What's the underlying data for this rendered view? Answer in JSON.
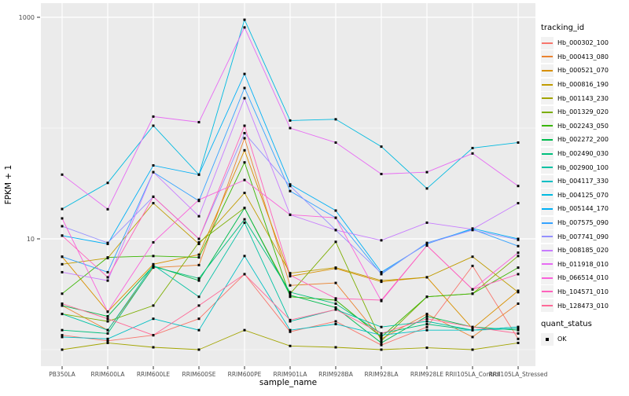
{
  "chart_data": {
    "type": "line",
    "title": "",
    "xlabel": "sample_name",
    "ylabel": "FPKM + 1",
    "y_scale": "log10",
    "y_tick_labels": [
      "1000",
      "10"
    ],
    "y_tick_values": [
      1000,
      10
    ],
    "y_major_gridlines": [
      1000,
      10
    ],
    "y_minor_gridlines": [
      100,
      1
    ],
    "ylim": [
      0.7,
      1300
    ],
    "grid": true,
    "legend_position": "right",
    "panel_bg": "#EBEBEB",
    "gridline_color": "#FFFFFF",
    "tick_label_color": "#4D4D4D",
    "point_color": "#000000",
    "point_shape": "square",
    "categories": [
      "PB350LA",
      "RRIM600LA",
      "RRIM600LE",
      "RRIM600SE",
      "RRIM600PE",
      "RRIM901LA",
      "RRIM928BA",
      "RRIM928LA",
      "RRIM928LE",
      "RRII105LA_Control",
      "RRII105LA_Stressed"
    ],
    "series": [
      {
        "name": "Hb_000302_100",
        "color": "#F8766D",
        "values": [
          1.35,
          1.2,
          1.35,
          1.9,
          4.8,
          1.45,
          1.8,
          1.1,
          1.6,
          5.7,
          1.25
        ]
      },
      {
        "name": "Hb_000413_080",
        "color": "#EA8331",
        "values": [
          2.5,
          1.5,
          5.5,
          5.8,
          81,
          3.8,
          4.0,
          1.25,
          2.1,
          1.3,
          2.6
        ]
      },
      {
        "name": "Hb_000521_070",
        "color": "#D89000",
        "values": [
          6.9,
          2.2,
          5.9,
          7.2,
          63,
          4.6,
          5.4,
          4.1,
          4.5,
          1.55,
          3.4
        ]
      },
      {
        "name": "Hb_000816_190",
        "color": "#C09B00",
        "values": [
          5.9,
          6.7,
          21,
          9.0,
          26,
          4.9,
          5.5,
          4.2,
          4.5,
          6.9,
          3.3
        ]
      },
      {
        "name": "Hb_001143_230",
        "color": "#A3A500",
        "values": [
          1.0,
          1.15,
          1.05,
          1.0,
          1.5,
          1.08,
          1.05,
          1.0,
          1.04,
          1.0,
          1.15
        ]
      },
      {
        "name": "Hb_001329_020",
        "color": "#7CAE00",
        "values": [
          2.1,
          1.8,
          2.5,
          9.3,
          19,
          3.2,
          9.4,
          1.2,
          3.0,
          3.2,
          7.0
        ]
      },
      {
        "name": "Hb_002243_050",
        "color": "#39B600",
        "values": [
          3.2,
          6.8,
          7.0,
          6.8,
          49,
          3.0,
          2.8,
          1.3,
          3.0,
          3.2,
          5.5
        ]
      },
      {
        "name": "Hb_002272_200",
        "color": "#00BB4E",
        "values": [
          2.5,
          2.0,
          5.7,
          4.2,
          19,
          3.1,
          2.4,
          1.15,
          2.0,
          1.6,
          1.5
        ]
      },
      {
        "name": "Hb_002490_030",
        "color": "#00BF7D",
        "values": [
          1.5,
          1.4,
          5.6,
          4.4,
          15,
          3.3,
          2.6,
          1.4,
          1.7,
          1.5,
          1.6
        ]
      },
      {
        "name": "Hb_002900_100",
        "color": "#00C1A3",
        "values": [
          2.1,
          1.5,
          5.8,
          3.0,
          14,
          1.8,
          2.3,
          1.6,
          1.8,
          1.5,
          1.55
        ]
      },
      {
        "name": "Hb_004117_330",
        "color": "#00BFC4",
        "values": [
          1.3,
          1.25,
          1.9,
          1.5,
          7.0,
          1.5,
          1.7,
          1.35,
          1.5,
          1.5,
          1.6
        ]
      },
      {
        "name": "Hb_004125_070",
        "color": "#00BAE0",
        "values": [
          18.6,
          32,
          105,
          38,
          950,
          117,
          120,
          68,
          28.5,
          66,
          74
        ]
      },
      {
        "name": "Hb_005144_170",
        "color": "#00B0F6",
        "values": [
          10.7,
          9.0,
          46,
          38,
          308,
          31,
          18,
          5.0,
          9.0,
          12.4,
          10
        ]
      },
      {
        "name": "Hb_007575_090",
        "color": "#35A2FF",
        "values": [
          6.9,
          5.0,
          40,
          22,
          230,
          27,
          15.5,
          4.8,
          9.2,
          12.2,
          8.6
        ]
      },
      {
        "name": "Hb_007741_090",
        "color": "#9590FF",
        "values": [
          13,
          9.2,
          24,
          10,
          90,
          30,
          12,
          4.9,
          9.1,
          12.0,
          9.8
        ]
      },
      {
        "name": "Hb_008185_020",
        "color": "#C77CFF",
        "values": [
          5.0,
          4.2,
          40,
          16,
          186,
          16.5,
          12,
          9.7,
          14,
          12.2,
          21
        ]
      },
      {
        "name": "Hb_011918_010",
        "color": "#E76BF3",
        "values": [
          38,
          18.5,
          127,
          113,
          810,
          100,
          74,
          38.5,
          40,
          59,
          30
        ]
      },
      {
        "name": "Hb_066514_010",
        "color": "#FA62DB",
        "values": [
          15.3,
          2.2,
          9.3,
          22.5,
          34,
          16.5,
          15.5,
          2.75,
          8.7,
          3.5,
          7.5
        ]
      },
      {
        "name": "Hb_104571_010",
        "color": "#FF62BC",
        "values": [
          10.7,
          4.5,
          24,
          10,
          105,
          4.7,
          2.9,
          2.8,
          8.7,
          3.5,
          4.8
        ]
      },
      {
        "name": "Hb_128473_010",
        "color": "#FF6A98",
        "values": [
          2.6,
          1.9,
          1.35,
          2.5,
          4.8,
          1.85,
          2.3,
          1.4,
          1.9,
          1.6,
          1.4
        ]
      }
    ]
  },
  "legend": {
    "tracking_title": "tracking_id",
    "quant_title": "quant_status",
    "quant_items": [
      {
        "label": "OK"
      }
    ]
  }
}
